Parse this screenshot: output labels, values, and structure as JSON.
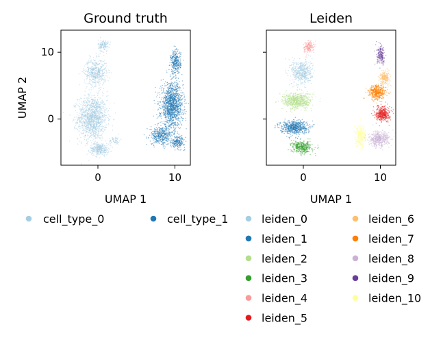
{
  "chart_data": [
    {
      "type": "scatter",
      "title": "Ground truth",
      "xlabel": "UMAP 1",
      "ylabel": "UMAP 2",
      "xlim": [
        -4.8,
        12.0
      ],
      "ylim": [
        -6.9,
        13.3
      ],
      "xticks": [
        0,
        10
      ],
      "yticks": [
        0,
        10
      ],
      "grid": false,
      "legend_placement": "below",
      "series": [
        {
          "name": "cell_type_0",
          "color": "#a6cee3",
          "regions": [
            {
              "cx": -0.7,
              "cy": 0.2,
              "sx": 1.7,
              "sy": 3.0,
              "n": 1300
            },
            {
              "cx": -0.3,
              "cy": 7.0,
              "sx": 1.3,
              "sy": 1.8,
              "n": 500
            },
            {
              "cx": 0.7,
              "cy": 11.0,
              "sx": 0.6,
              "sy": 0.8,
              "n": 140
            },
            {
              "cx": 0.2,
              "cy": -4.5,
              "sx": 1.1,
              "sy": 0.8,
              "n": 300
            },
            {
              "cx": 2.2,
              "cy": -3.2,
              "sx": 0.7,
              "sy": 0.6,
              "n": 60
            }
          ]
        },
        {
          "name": "cell_type_1",
          "color": "#1f78b4",
          "regions": [
            {
              "cx": 9.6,
              "cy": 2.0,
              "sx": 1.3,
              "sy": 3.0,
              "n": 1300
            },
            {
              "cx": 10.1,
              "cy": 8.5,
              "sx": 0.6,
              "sy": 1.6,
              "n": 300
            },
            {
              "cx": 8.2,
              "cy": -2.5,
              "sx": 1.3,
              "sy": 1.2,
              "n": 400
            },
            {
              "cx": 10.4,
              "cy": -3.4,
              "sx": 0.8,
              "sy": 0.8,
              "n": 200
            }
          ]
        }
      ]
    },
    {
      "type": "scatter",
      "title": "Leiden",
      "xlabel": "UMAP 1",
      "ylabel": "",
      "xlim": [
        -4.8,
        12.0
      ],
      "ylim": [
        -6.9,
        13.3
      ],
      "xticks": [
        0,
        10
      ],
      "yticks": [
        0,
        10
      ],
      "grid": false,
      "legend_placement": "below",
      "series": [
        {
          "name": "leiden_0",
          "color": "#a6cee3",
          "regions": [
            {
              "cx": -0.2,
              "cy": 7.0,
              "sx": 1.2,
              "sy": 1.7,
              "n": 500
            }
          ]
        },
        {
          "name": "leiden_1",
          "color": "#1f78b4",
          "regions": [
            {
              "cx": -1.2,
              "cy": -1.2,
              "sx": 1.6,
              "sy": 0.9,
              "n": 600
            }
          ]
        },
        {
          "name": "leiden_2",
          "color": "#b2df8a",
          "regions": [
            {
              "cx": -0.8,
              "cy": 2.7,
              "sx": 1.7,
              "sy": 1.1,
              "n": 650
            }
          ]
        },
        {
          "name": "leiden_3",
          "color": "#33a02c",
          "regions": [
            {
              "cx": -0.2,
              "cy": -4.2,
              "sx": 1.2,
              "sy": 0.8,
              "n": 380
            }
          ]
        },
        {
          "name": "leiden_4",
          "color": "#fb9a99",
          "regions": [
            {
              "cx": 0.7,
              "cy": 10.8,
              "sx": 0.6,
              "sy": 0.8,
              "n": 160
            }
          ]
        },
        {
          "name": "leiden_5",
          "color": "#e31a1c",
          "regions": [
            {
              "cx": 10.3,
              "cy": 0.8,
              "sx": 0.8,
              "sy": 1.0,
              "n": 400
            }
          ]
        },
        {
          "name": "leiden_6",
          "color": "#fdbf6f",
          "regions": [
            {
              "cx": 10.6,
              "cy": 6.2,
              "sx": 0.6,
              "sy": 0.9,
              "n": 220
            }
          ]
        },
        {
          "name": "leiden_7",
          "color": "#ff7f00",
          "regions": [
            {
              "cx": 9.6,
              "cy": 4.0,
              "sx": 1.0,
              "sy": 1.0,
              "n": 450
            }
          ]
        },
        {
          "name": "leiden_8",
          "color": "#cab2d6",
          "regions": [
            {
              "cx": 9.8,
              "cy": -3.0,
              "sx": 1.2,
              "sy": 1.0,
              "n": 450
            }
          ]
        },
        {
          "name": "leiden_9",
          "color": "#6a3d9a",
          "regions": [
            {
              "cx": 10.1,
              "cy": 9.5,
              "sx": 0.5,
              "sy": 1.2,
              "n": 180
            }
          ]
        },
        {
          "name": "leiden_10",
          "color": "#ffff99",
          "regions": [
            {
              "cx": 7.4,
              "cy": -2.5,
              "sx": 0.6,
              "sy": 1.5,
              "n": 300
            }
          ]
        }
      ]
    }
  ],
  "legends": {
    "ground_truth": [
      "cell_type_0",
      "cell_type_1"
    ],
    "leiden": [
      "leiden_0",
      "leiden_1",
      "leiden_2",
      "leiden_3",
      "leiden_4",
      "leiden_5",
      "leiden_6",
      "leiden_7",
      "leiden_8",
      "leiden_9",
      "leiden_10"
    ]
  }
}
